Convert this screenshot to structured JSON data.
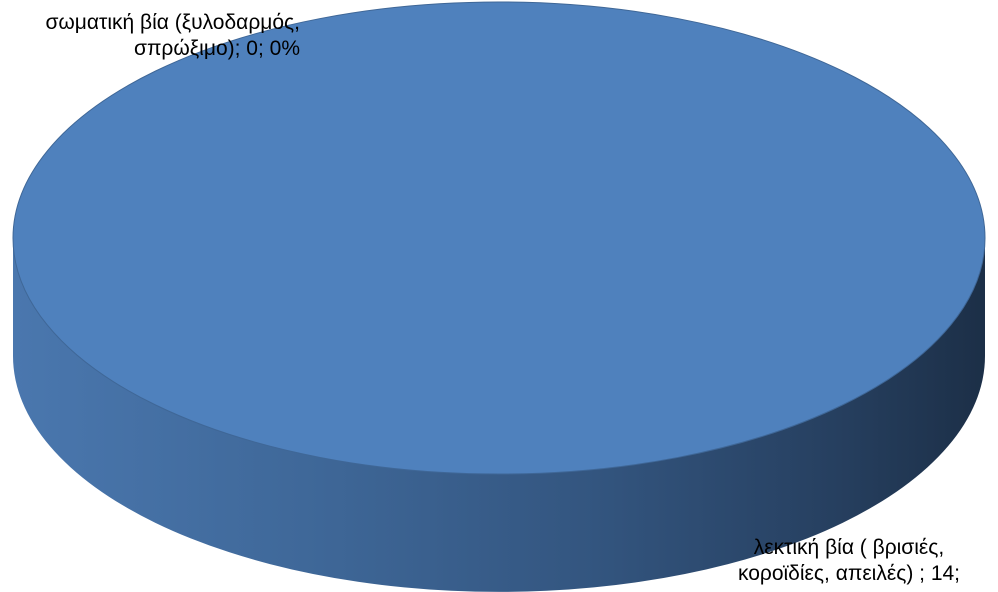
{
  "chart_data": {
    "type": "pie",
    "style": "3d",
    "slices": [
      {
        "label_lines": [
          "σωματική βία (ξυλοδαρμός,",
          "σπρώξιμο); 0; 0%"
        ],
        "value": 0,
        "percent": 0
      },
      {
        "label_lines": [
          "λεκτική βία ( βρισιές,",
          "κοροϊδίες, απειλές) ; 14;"
        ],
        "value": 14,
        "percent": 100
      }
    ],
    "colors": {
      "top": "#4f81bd",
      "side_light": "#456fa3",
      "side_dark": "#1f3249",
      "rim": "#3f6797"
    }
  }
}
